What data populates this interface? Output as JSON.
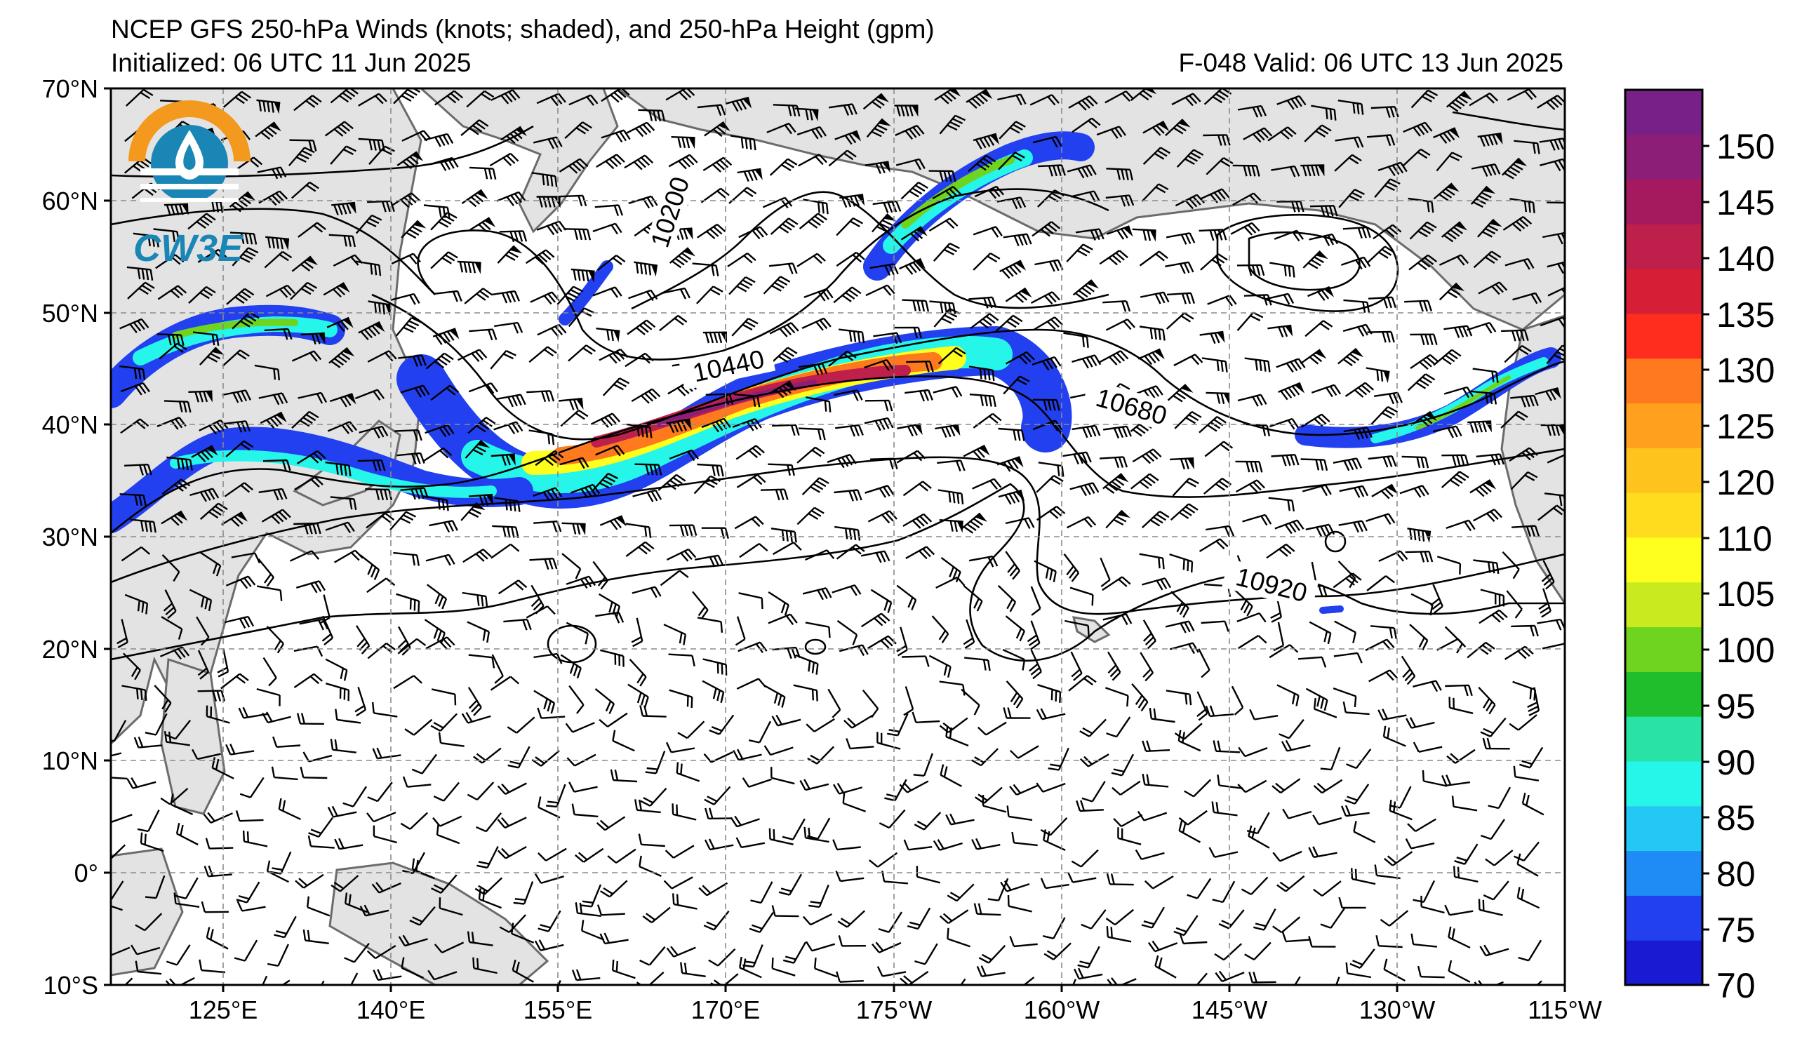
{
  "header": {
    "title": "NCEP GFS 250-hPa Winds (knots; shaded), and 250-hPa Height (gpm)",
    "initialized": "Initialized: 06 UTC 11 Jun 2025",
    "valid": "F-048  Valid: 06 UTC 13 Jun 2025"
  },
  "logo": {
    "text": "CW3E",
    "colors": {
      "sun": "#f39a1e",
      "water": "#1a86b5"
    }
  },
  "map": {
    "lat_labels": [
      "70°N",
      "60°N",
      "50°N",
      "40°N",
      "30°N",
      "20°N",
      "10°N",
      "0°",
      "10°S"
    ],
    "lon_labels": [
      "125°E",
      "140°E",
      "155°E",
      "170°E",
      "175°W",
      "160°W",
      "145°W",
      "130°W",
      "115°W"
    ],
    "contour_labels": [
      "10200",
      "10440",
      "10680",
      "10920"
    ],
    "land_color": "#e3e3e3",
    "coast_color": "#6b6b6b",
    "grid_color": "#8a8a8a"
  },
  "colorbar": {
    "ticks": [
      "150",
      "145",
      "140",
      "135",
      "130",
      "125",
      "120",
      "110",
      "105",
      "100",
      "95",
      "90",
      "85",
      "80",
      "75",
      "70"
    ],
    "bands": [
      "#1a1ad2",
      "#2340f0",
      "#1f8cf5",
      "#23c8f5",
      "#26f5ea",
      "#28e3a5",
      "#1fbe2c",
      "#6fd41f",
      "#c8ea1e",
      "#ffff1e",
      "#ffdc1e",
      "#ffc31e",
      "#ffa01e",
      "#ff7a1e",
      "#ff2d1e",
      "#d71e37",
      "#be1f4b",
      "#a5195f",
      "#8c1e78",
      "#782087"
    ]
  },
  "jets": {
    "pacific_core": "Central North Pacific jet — winds to 140–145 kt near 40°N 170°E",
    "colors": {
      "weak": "#2340f0",
      "moderate": "#26f5ea",
      "strong": "#ffff1e",
      "core": "#be1f4b"
    }
  }
}
